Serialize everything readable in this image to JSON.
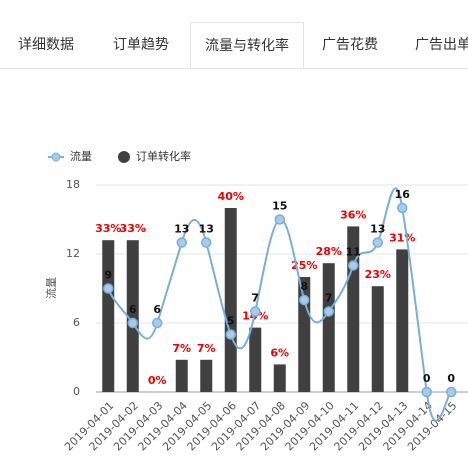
{
  "tabs": [
    "详细数据",
    "订单趋势",
    "流量与转化率",
    "广告花费",
    "广告出单"
  ],
  "active_tab": 2,
  "chart_data": {
    "type": "combo",
    "y_label": "流量",
    "categories": [
      "2019-04-01",
      "2019-04-02",
      "2019-04-03",
      "2019-04-04",
      "2019-04-05",
      "2019-04-06",
      "2019-04-07",
      "2019-04-08",
      "2019-04-09",
      "2019-04-10",
      "2019-04-11",
      "2019-04-12",
      "2019-04-13",
      "2019-04-14",
      "2019-04-15"
    ],
    "series": [
      {
        "name": "流量",
        "type": "line",
        "color": "#7aaedb",
        "values": [
          9,
          6,
          6,
          13,
          13,
          5,
          7,
          15,
          8,
          7,
          11,
          13,
          16,
          0,
          0
        ]
      },
      {
        "name": "订单转化率",
        "type": "bar",
        "axis": "y2",
        "color": "#404040",
        "values": [
          33,
          33,
          0,
          7,
          7,
          40,
          14,
          6,
          25,
          28,
          36,
          23,
          31,
          null,
          null
        ],
        "value_labels": [
          "33%",
          "33%",
          "0%",
          "7%",
          "7%",
          "40%",
          "14%",
          "6%",
          "25%",
          "28%",
          "36%",
          "23%",
          "31%",
          null,
          null
        ]
      }
    ],
    "ylim": [
      0,
      18
    ],
    "yticks": [
      0,
      6,
      12,
      18
    ],
    "y2lim": [
      0,
      45
    ],
    "grid": true,
    "legend": "top-left"
  }
}
